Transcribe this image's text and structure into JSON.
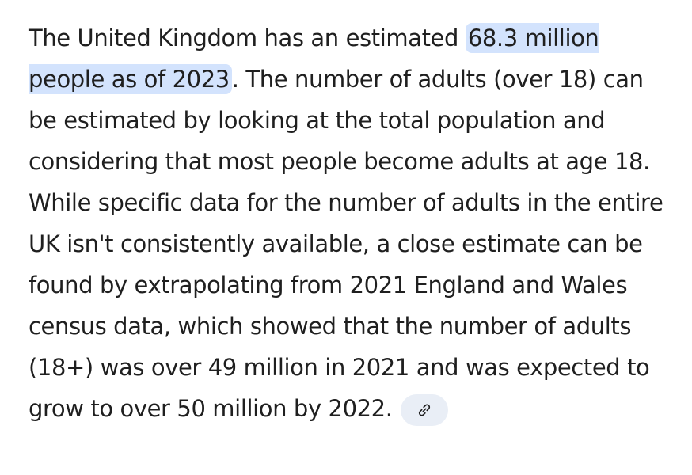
{
  "paragraph": {
    "before": "The United Kingdom has an estimated ",
    "highlight": "68.3 million people as of 2023",
    "after": ". The number of adults (over 18) can be estimated by looking at the total population and considering that most people become adults at age 18. While specific data for the number of adults in the entire UK isn't consistently available, a close estimate can be found by extrapolating from 2021 England and Wales census data, which showed that the number of adults (18+) was over 49 million in 2021 and was expected to grow to over 50 million by 2022."
  }
}
